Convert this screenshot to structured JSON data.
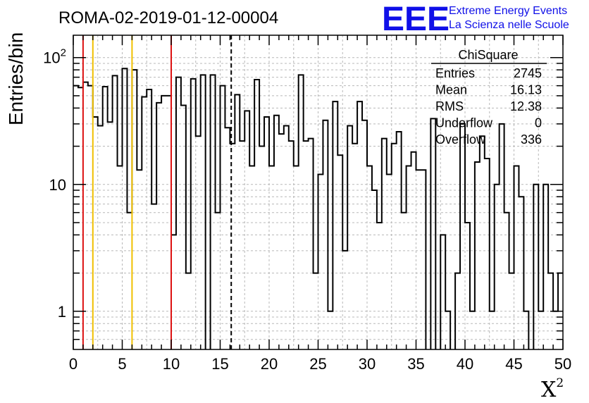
{
  "header": {
    "title": "ROMA-02-2019-01-12-00004",
    "logo": {
      "letters": "EEE",
      "line1": "Extreme Energy Events",
      "line2": "La Scienza nelle Scuole",
      "color": "#1010e8"
    }
  },
  "stats": {
    "name": "ChiSquare",
    "rows": [
      {
        "label": "Entries",
        "value": "2745"
      },
      {
        "label": "Mean",
        "value": "16.13"
      },
      {
        "label": "RMS",
        "value": "12.38"
      },
      {
        "label": "Underflow",
        "value": "0"
      },
      {
        "label": "Overflow",
        "value": "336"
      }
    ]
  },
  "chart_data": {
    "type": "histogram",
    "title": "ROMA-02-2019-01-12-00004",
    "xlabel": "X",
    "xlabel_sup": "2",
    "ylabel": "Entries/bin",
    "y_scale": "log",
    "xlim": [
      0,
      50
    ],
    "ylim": [
      0.5,
      150
    ],
    "bin_width": 0.5,
    "grid": true,
    "x_ticks": [
      0,
      5,
      10,
      15,
      20,
      25,
      30,
      35,
      40,
      45,
      50
    ],
    "x_tick_labels": [
      "0",
      "5",
      "10",
      "15",
      "20",
      "25",
      "30",
      "35",
      "40",
      "45",
      "50"
    ],
    "y_ticks": [
      {
        "value": 1,
        "label": "1"
      },
      {
        "value": 10,
        "label": "10"
      },
      {
        "value": 100,
        "label": "10",
        "sup": "2"
      }
    ],
    "counts": [
      60,
      58,
      64,
      60,
      34,
      29,
      59,
      31,
      72,
      14,
      82,
      6,
      80,
      13,
      49,
      56,
      7,
      44,
      50,
      50,
      4,
      70,
      42,
      2,
      68,
      24,
      73,
      0,
      73,
      6,
      60,
      28,
      21,
      51,
      22,
      38,
      14,
      67,
      20,
      34,
      14,
      35,
      25,
      29,
      22,
      14,
      73,
      22,
      23,
      2,
      12,
      32,
      1,
      45,
      17,
      3,
      29,
      21,
      45,
      32,
      14,
      9,
      5,
      23,
      12,
      21,
      26,
      6,
      14,
      18,
      13,
      13,
      0,
      33,
      0,
      4,
      1,
      0,
      2,
      30,
      5,
      1,
      15,
      24,
      16,
      1,
      10,
      30,
      6,
      2,
      14,
      8,
      1,
      0,
      10,
      1,
      10,
      2,
      1,
      2
    ],
    "vlines": [
      {
        "x": 1,
        "color": "#dd1111",
        "style": "solid"
      },
      {
        "x": 2,
        "color": "#f0c000",
        "style": "solid"
      },
      {
        "x": 6,
        "color": "#f0c000",
        "style": "solid"
      },
      {
        "x": 10,
        "color": "#dd1111",
        "style": "solid"
      },
      {
        "x": 16.13,
        "color": "#000000",
        "style": "dashed"
      }
    ]
  }
}
